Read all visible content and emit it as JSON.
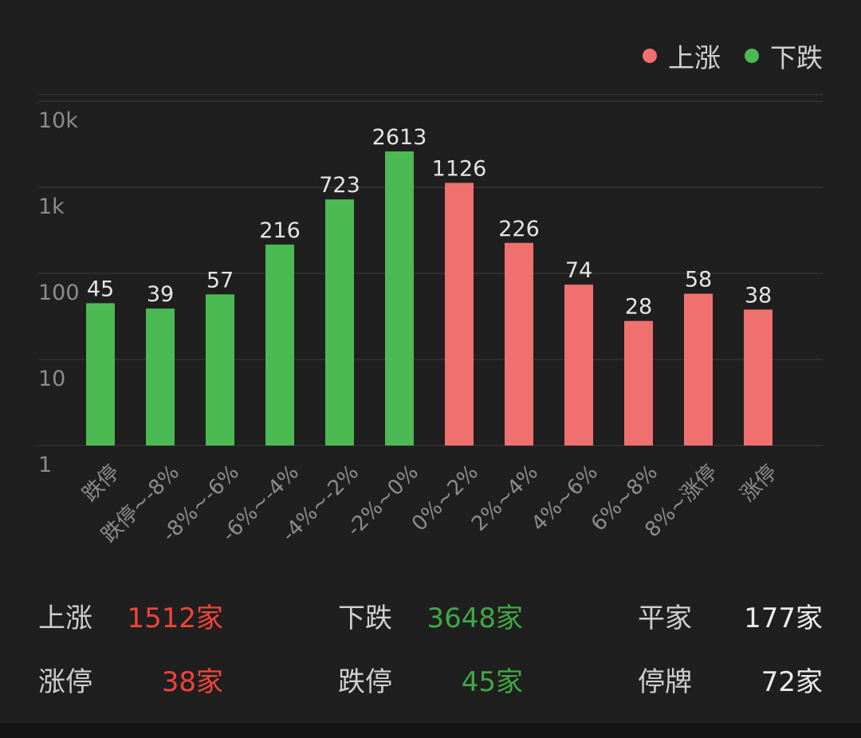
{
  "colors": {
    "up": "#f07070",
    "down": "#4cba52",
    "up_text": "#f0443a",
    "down_text": "#3fa945",
    "flat_text": "#ececec",
    "grid": "#333333",
    "axis_text": "#8c8c8c",
    "value_text": "#e4e4e4"
  },
  "legend": [
    {
      "label": "上涨",
      "color": "#f07070"
    },
    {
      "label": "下跌",
      "color": "#4cba52"
    }
  ],
  "chart_data": {
    "type": "bar",
    "y_scale": "log",
    "ylim": [
      1,
      10000
    ],
    "y_ticks": [
      "10k",
      "1k",
      "100",
      "10",
      "1"
    ],
    "legend_position": "top-right",
    "grid": true,
    "categories": [
      "跌停",
      "跌停~-8%",
      "-8%~-6%",
      "-6%~-4%",
      "-4%~-2%",
      "-2%~0%",
      "0%~2%",
      "2%~4%",
      "4%~6%",
      "6%~8%",
      "8%~涨停",
      "涨停"
    ],
    "series": [
      {
        "name": "下跌",
        "values": [
          45,
          39,
          57,
          216,
          723,
          2613,
          null,
          null,
          null,
          null,
          null,
          null
        ]
      },
      {
        "name": "上涨",
        "values": [
          null,
          null,
          null,
          null,
          null,
          null,
          1126,
          226,
          74,
          28,
          58,
          38
        ]
      }
    ]
  },
  "stats": [
    [
      {
        "label": "上涨",
        "value": "1512家",
        "tone": "up"
      },
      {
        "label": "下跌",
        "value": "3648家",
        "tone": "down"
      },
      {
        "label": "平家",
        "value": "177家",
        "tone": "flat"
      }
    ],
    [
      {
        "label": "涨停",
        "value": "38家",
        "tone": "up"
      },
      {
        "label": "跌停",
        "value": "45家",
        "tone": "down"
      },
      {
        "label": "停牌",
        "value": "72家",
        "tone": "flat"
      }
    ]
  ]
}
